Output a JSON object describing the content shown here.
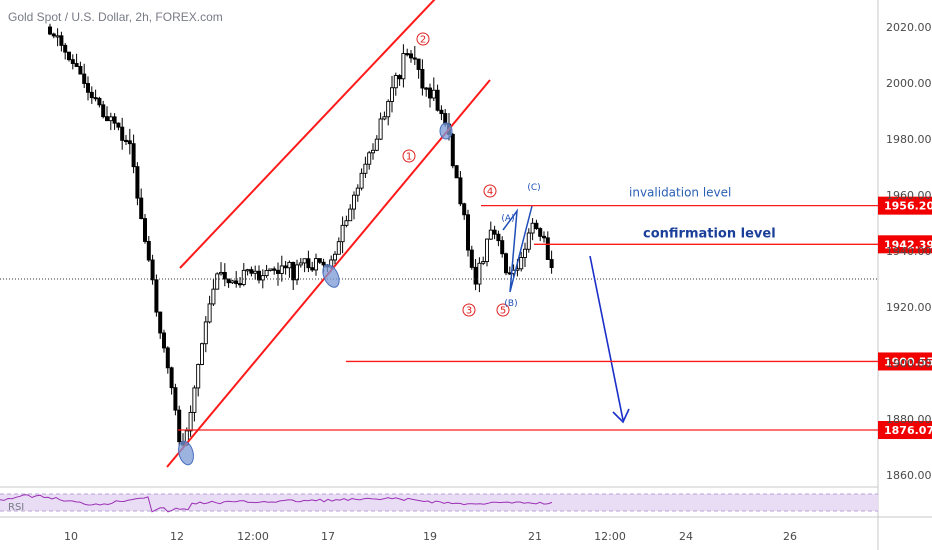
{
  "title": "Gold Spot / U.S. Dollar, 2h, FOREX.com",
  "chart_data": {
    "type": "candlestick",
    "title": "Gold Spot / U.S. Dollar, 2h, FOREX.com",
    "ylim": [
      1853,
      2028
    ],
    "y_ticks": [
      1860,
      1880,
      1900,
      1920,
      1940,
      1960,
      1980,
      2000,
      2020
    ],
    "x_tick_labels": [
      "10",
      "12",
      "12:00",
      "17",
      "19",
      "21",
      "12:00",
      "24",
      "26"
    ],
    "current_price": 1930,
    "price_path": [
      {
        "date": "10",
        "price": 2020
      },
      {
        "date": "11",
        "price": 1975
      },
      {
        "date": "12",
        "price": 1868
      },
      {
        "date": "13",
        "price": 1930
      },
      {
        "date": "17",
        "price": 1935
      },
      {
        "date": "18",
        "price": 2012
      },
      {
        "date": "19",
        "price": 1985
      },
      {
        "date": "20",
        "price": 1928
      },
      {
        "date": "20",
        "price": 1948
      },
      {
        "date": "21",
        "price": 1930
      },
      {
        "date": "21",
        "price": 1952
      },
      {
        "date": "21",
        "price": 1932
      }
    ],
    "levels": [
      {
        "label": "invalidation level",
        "price_tag": "1956.20",
        "value": 1956.2,
        "color": "#ff1a1a",
        "label_color": "#2a5fb4"
      },
      {
        "label": "confirmation level",
        "price_tag": "1942.39",
        "value": 1942.39,
        "color": "#ff1a1a",
        "label_color": "#1a3f9a"
      },
      {
        "label": "",
        "price_tag": "1900.55",
        "value": 1900.55,
        "color": "#ff1a1a",
        "label_color": ""
      },
      {
        "label": "",
        "price_tag": "1876.07",
        "value": 1876.07,
        "color": "#ff1a1a",
        "label_color": ""
      }
    ],
    "wave_labels": [
      {
        "text": "1",
        "color": "#e02020"
      },
      {
        "text": "2",
        "color": "#e02020"
      },
      {
        "text": "3",
        "color": "#e02020"
      },
      {
        "text": "4",
        "color": "#e02020"
      },
      {
        "text": "5",
        "color": "#e02020"
      },
      {
        "text": "(A)",
        "color": "#1f4fb8"
      },
      {
        "text": "(B)",
        "color": "#1f4fb8"
      },
      {
        "text": "(C)",
        "color": "#1f4fb8"
      }
    ],
    "indicator_label": "RSI",
    "colors": {
      "candle": "#000000",
      "channel": "#ff1a1a",
      "arrow": "#1a2fc8",
      "tag_bg": "#f20000",
      "rsi_line": "#9b2fb5",
      "rsi_band": "#e9ddf5"
    }
  }
}
